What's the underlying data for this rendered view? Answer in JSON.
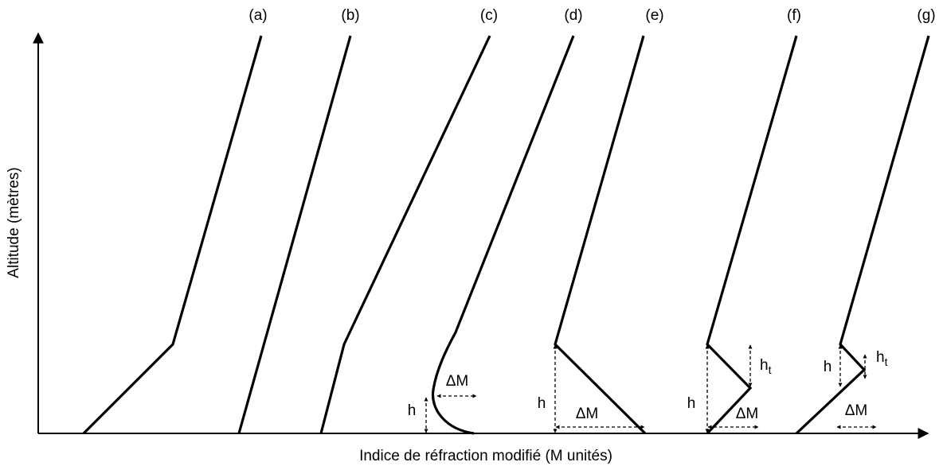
{
  "curve_labels": [
    "(a)",
    "(b)",
    "(c)",
    "(d)",
    "(e)",
    "(f)",
    "(g)"
  ],
  "x_axis_label": "Indice de réfraction modifié (M unités)",
  "y_axis_label": "Altitude (mètres)",
  "annotations": {
    "d": {
      "delta_m": "ΔM",
      "h": "h"
    },
    "e": {
      "delta_m": "ΔM",
      "h": "h"
    },
    "f": {
      "delta_m": "ΔM",
      "h": "h",
      "h_t": {
        "text": "h",
        "subscript": "t"
      }
    },
    "g": {
      "delta_m": "ΔM",
      "h": "h",
      "h_t": {
        "text": "h",
        "subscript": "t"
      }
    }
  }
}
